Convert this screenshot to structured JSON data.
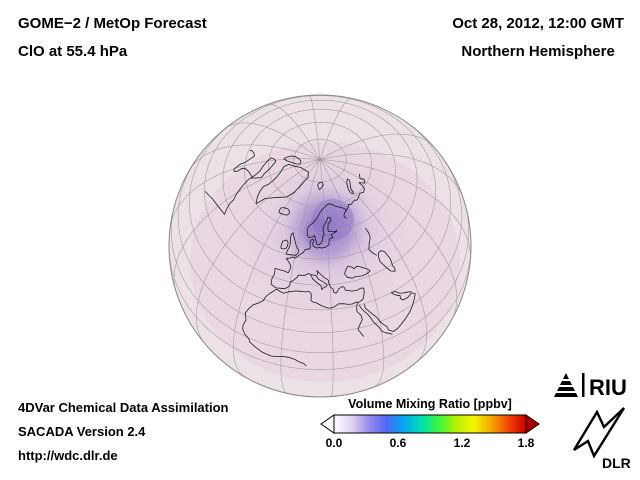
{
  "header": {
    "title": "GOME−2 / MetOp Forecast",
    "subtitle": "ClO at 55.4 hPa",
    "datetime": "Oct 28, 2012, 12:00 GMT",
    "region": "Northern Hemisphere"
  },
  "footer": {
    "line1": "4DVar Chemical Data Assimilation",
    "line2": "SACADA Version 2.4",
    "line3": "http://wdc.dlr.de"
  },
  "colorbar": {
    "title": "Volume Mixing Ratio [ppbv]",
    "ticks": [
      "0.0",
      "0.6",
      "1.2",
      "1.8"
    ],
    "range": [
      0.0,
      1.8
    ],
    "gradient": [
      "#ffffff",
      "#e2d2f2",
      "#9b8cf0",
      "#4f68f5",
      "#00a8f0",
      "#00e0b0",
      "#3df53d",
      "#b8f000",
      "#f5f500",
      "#f5a800",
      "#f54400",
      "#c80000"
    ],
    "arrow_left_color": "#ffffff",
    "arrow_right_color": "#a80000"
  },
  "logos": {
    "riu_label": "RIU",
    "dlr_label": "DLR"
  },
  "map": {
    "projection": "orthographic",
    "view": "Northern Hemisphere centered near Scandinavia",
    "base_color": "#ece1e6",
    "graticule_color": "#a59da4",
    "coast_color": "#1a1a1a",
    "anomaly": {
      "region": "Scandinavia / northern Europe",
      "core_color": "#8a70c6",
      "halo_color": "#cfb9de",
      "approx_peak_ppbv": 0.25
    }
  }
}
